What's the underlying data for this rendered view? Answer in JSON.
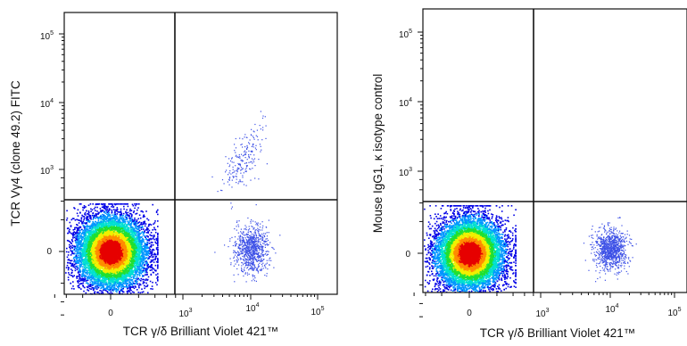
{
  "chart_data": [
    {
      "type": "scatter",
      "title": "",
      "xlabel": "TCR γ/δ Brilliant Violet 421™",
      "ylabel": "TCR Vγ4 (clone 49.2) FITC",
      "x_ticks": [
        {
          "base": "0",
          "exp": ""
        },
        {
          "base": "10",
          "exp": "3"
        },
        {
          "base": "10",
          "exp": "4"
        },
        {
          "base": "10",
          "exp": "5"
        }
      ],
      "y_ticks": [
        {
          "base": "0",
          "exp": ""
        },
        {
          "base": "10",
          "exp": "3"
        },
        {
          "base": "10",
          "exp": "4"
        },
        {
          "base": "10",
          "exp": "5"
        }
      ],
      "x_scale": "biexponential",
      "y_scale": "biexponential",
      "quadrant_gate": {
        "x": 800,
        "y": 380
      },
      "populations": [
        {
          "name": "",
          "center": [
            0,
            0
          ],
          "spread": [
            350,
            350
          ],
          "events": 9000,
          "density_colored": true
        },
        {
          "name": "",
          "center": [
            10000,
            10
          ],
          "spread": [
            9000,
            180
          ],
          "events": 850,
          "density_colored": false
        },
        {
          "name": "",
          "center": [
            8000,
            1500
          ],
          "spread": [
            6000,
            1200
          ],
          "events": 200,
          "density_colored": false
        }
      ],
      "density_colors": [
        "#0000e6",
        "#0096ff",
        "#00e0d0",
        "#20e030",
        "#f0f000",
        "#ff8c00",
        "#e60000"
      ],
      "sparse_color": "#3c50e6"
    },
    {
      "type": "scatter",
      "title": "",
      "xlabel": "TCR γ/δ Brilliant Violet 421™",
      "ylabel": "Mouse IgG1, κ isotype control",
      "x_ticks": [
        {
          "base": "0",
          "exp": ""
        },
        {
          "base": "10",
          "exp": "3"
        },
        {
          "base": "10",
          "exp": "4"
        },
        {
          "base": "10",
          "exp": "5"
        }
      ],
      "y_ticks": [
        {
          "base": "0",
          "exp": ""
        },
        {
          "base": "10",
          "exp": "3"
        },
        {
          "base": "10",
          "exp": "4"
        },
        {
          "base": "10",
          "exp": "5"
        }
      ],
      "x_scale": "biexponential",
      "y_scale": "biexponential",
      "quadrant_gate": {
        "x": 800,
        "y": 380
      },
      "populations": [
        {
          "name": "",
          "center": [
            0,
            0
          ],
          "spread": [
            350,
            350
          ],
          "events": 9000,
          "density_colored": true
        },
        {
          "name": "",
          "center": [
            10000,
            20
          ],
          "spread": [
            9000,
            150
          ],
          "events": 1000,
          "density_colored": false
        }
      ],
      "density_colors": [
        "#0000e6",
        "#0096ff",
        "#00e0d0",
        "#20e030",
        "#f0f000",
        "#ff8c00",
        "#e60000"
      ],
      "sparse_color": "#3c50e6"
    }
  ]
}
